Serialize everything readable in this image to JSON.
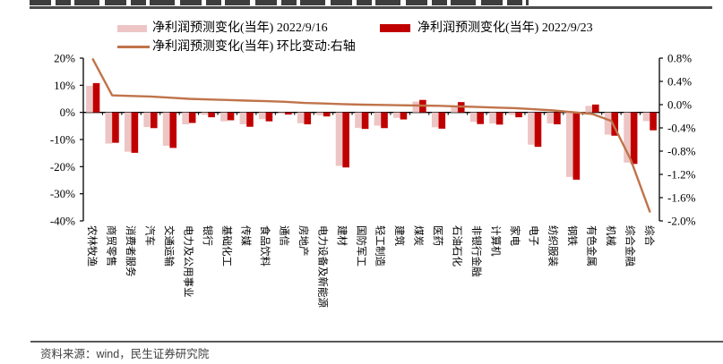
{
  "legend": {
    "items": [
      {
        "label": "净利润预测变化(当年) 2022/9/16",
        "swatch": "bar",
        "color": "#EDC5C5"
      },
      {
        "label": "净利润预测变化(当年) 2022/9/23",
        "swatch": "bar",
        "color": "#C00000"
      },
      {
        "label": "净利润预测变化(当年) 环比变动:右轴",
        "swatch": "line",
        "color": "#C0734A"
      }
    ]
  },
  "footer": {
    "source": "资料来源：wind，民生证券研究院"
  },
  "colors": {
    "bar_prev": "#EDC5C5",
    "bar_curr": "#C00000",
    "line": "#C0734A",
    "axis": "#000000"
  },
  "chart_data": {
    "type": "bar+line combo",
    "categories": [
      "农林牧渔",
      "商贸零售",
      "消费者服务",
      "汽车",
      "交通运输",
      "电力及公用事业",
      "银行",
      "基础化工",
      "传媒",
      "食品饮料",
      "通信",
      "房地产",
      "电力设备及新能源",
      "建材",
      "国防军工",
      "轻工制造",
      "建筑",
      "煤炭",
      "医药",
      "石油石化",
      "非银行金融",
      "计算机",
      "家电",
      "电子",
      "纺织服装",
      "钢铁",
      "有色金属",
      "机械",
      "综合金融",
      "综合"
    ],
    "series": [
      {
        "name": "净利润预测变化(当年) 2022/9/16",
        "type": "bar",
        "axis": "left",
        "color": "#EDC5C5",
        "values": [
          9.8,
          -11.5,
          -14.5,
          -5.4,
          -12.3,
          -4.4,
          -0.9,
          -3.3,
          -4.4,
          -2.5,
          -0.5,
          -4.0,
          -1.0,
          -19.7,
          -5.7,
          -4.9,
          -2.0,
          4.0,
          -5.5,
          2.5,
          -3.5,
          -4.1,
          -0.9,
          -11.9,
          -4.1,
          -23.8,
          2.4,
          -8.2,
          -18.5,
          -3.2
        ]
      },
      {
        "name": "净利润预测变化(当年) 2022/9/23",
        "type": "bar",
        "axis": "left",
        "color": "#C00000",
        "values": [
          10.8,
          -11.2,
          -14.9,
          -5.8,
          -13.1,
          -3.9,
          -1.8,
          -2.9,
          -5.3,
          -3.3,
          -0.8,
          -4.4,
          -1.5,
          -20.3,
          -6.1,
          -5.8,
          -2.6,
          4.6,
          -6.0,
          3.8,
          -4.3,
          -4.5,
          -1.8,
          -12.7,
          -4.4,
          -24.8,
          2.9,
          -8.6,
          -19.0,
          -6.6
        ]
      },
      {
        "name": "净利润预测变化(当年) 环比变动:右轴",
        "type": "line",
        "axis": "right",
        "color": "#C0734A",
        "values": [
          0.78,
          0.16,
          0.15,
          0.14,
          0.12,
          0.1,
          0.09,
          0.08,
          0.07,
          0.06,
          0.05,
          0.03,
          0.02,
          0.01,
          0.0,
          -0.005,
          -0.01,
          -0.015,
          -0.02,
          -0.03,
          -0.04,
          -0.05,
          -0.06,
          -0.08,
          -0.1,
          -0.13,
          -0.16,
          -0.28,
          -0.94,
          -1.84
        ]
      }
    ],
    "left_axis": {
      "ticks": [
        "20%",
        "10%",
        "0%",
        "-10%",
        "-20%",
        "-30%",
        "-40%"
      ],
      "max": 20,
      "min": -40
    },
    "right_axis": {
      "ticks": [
        "0.8%",
        "0.4%",
        "0.0%",
        "-0.4%",
        "-0.8%",
        "-1.2%",
        "-1.6%",
        "-2.0%"
      ],
      "max": 0.8,
      "min": -2.0
    },
    "grid": false,
    "legend_position": "top"
  }
}
